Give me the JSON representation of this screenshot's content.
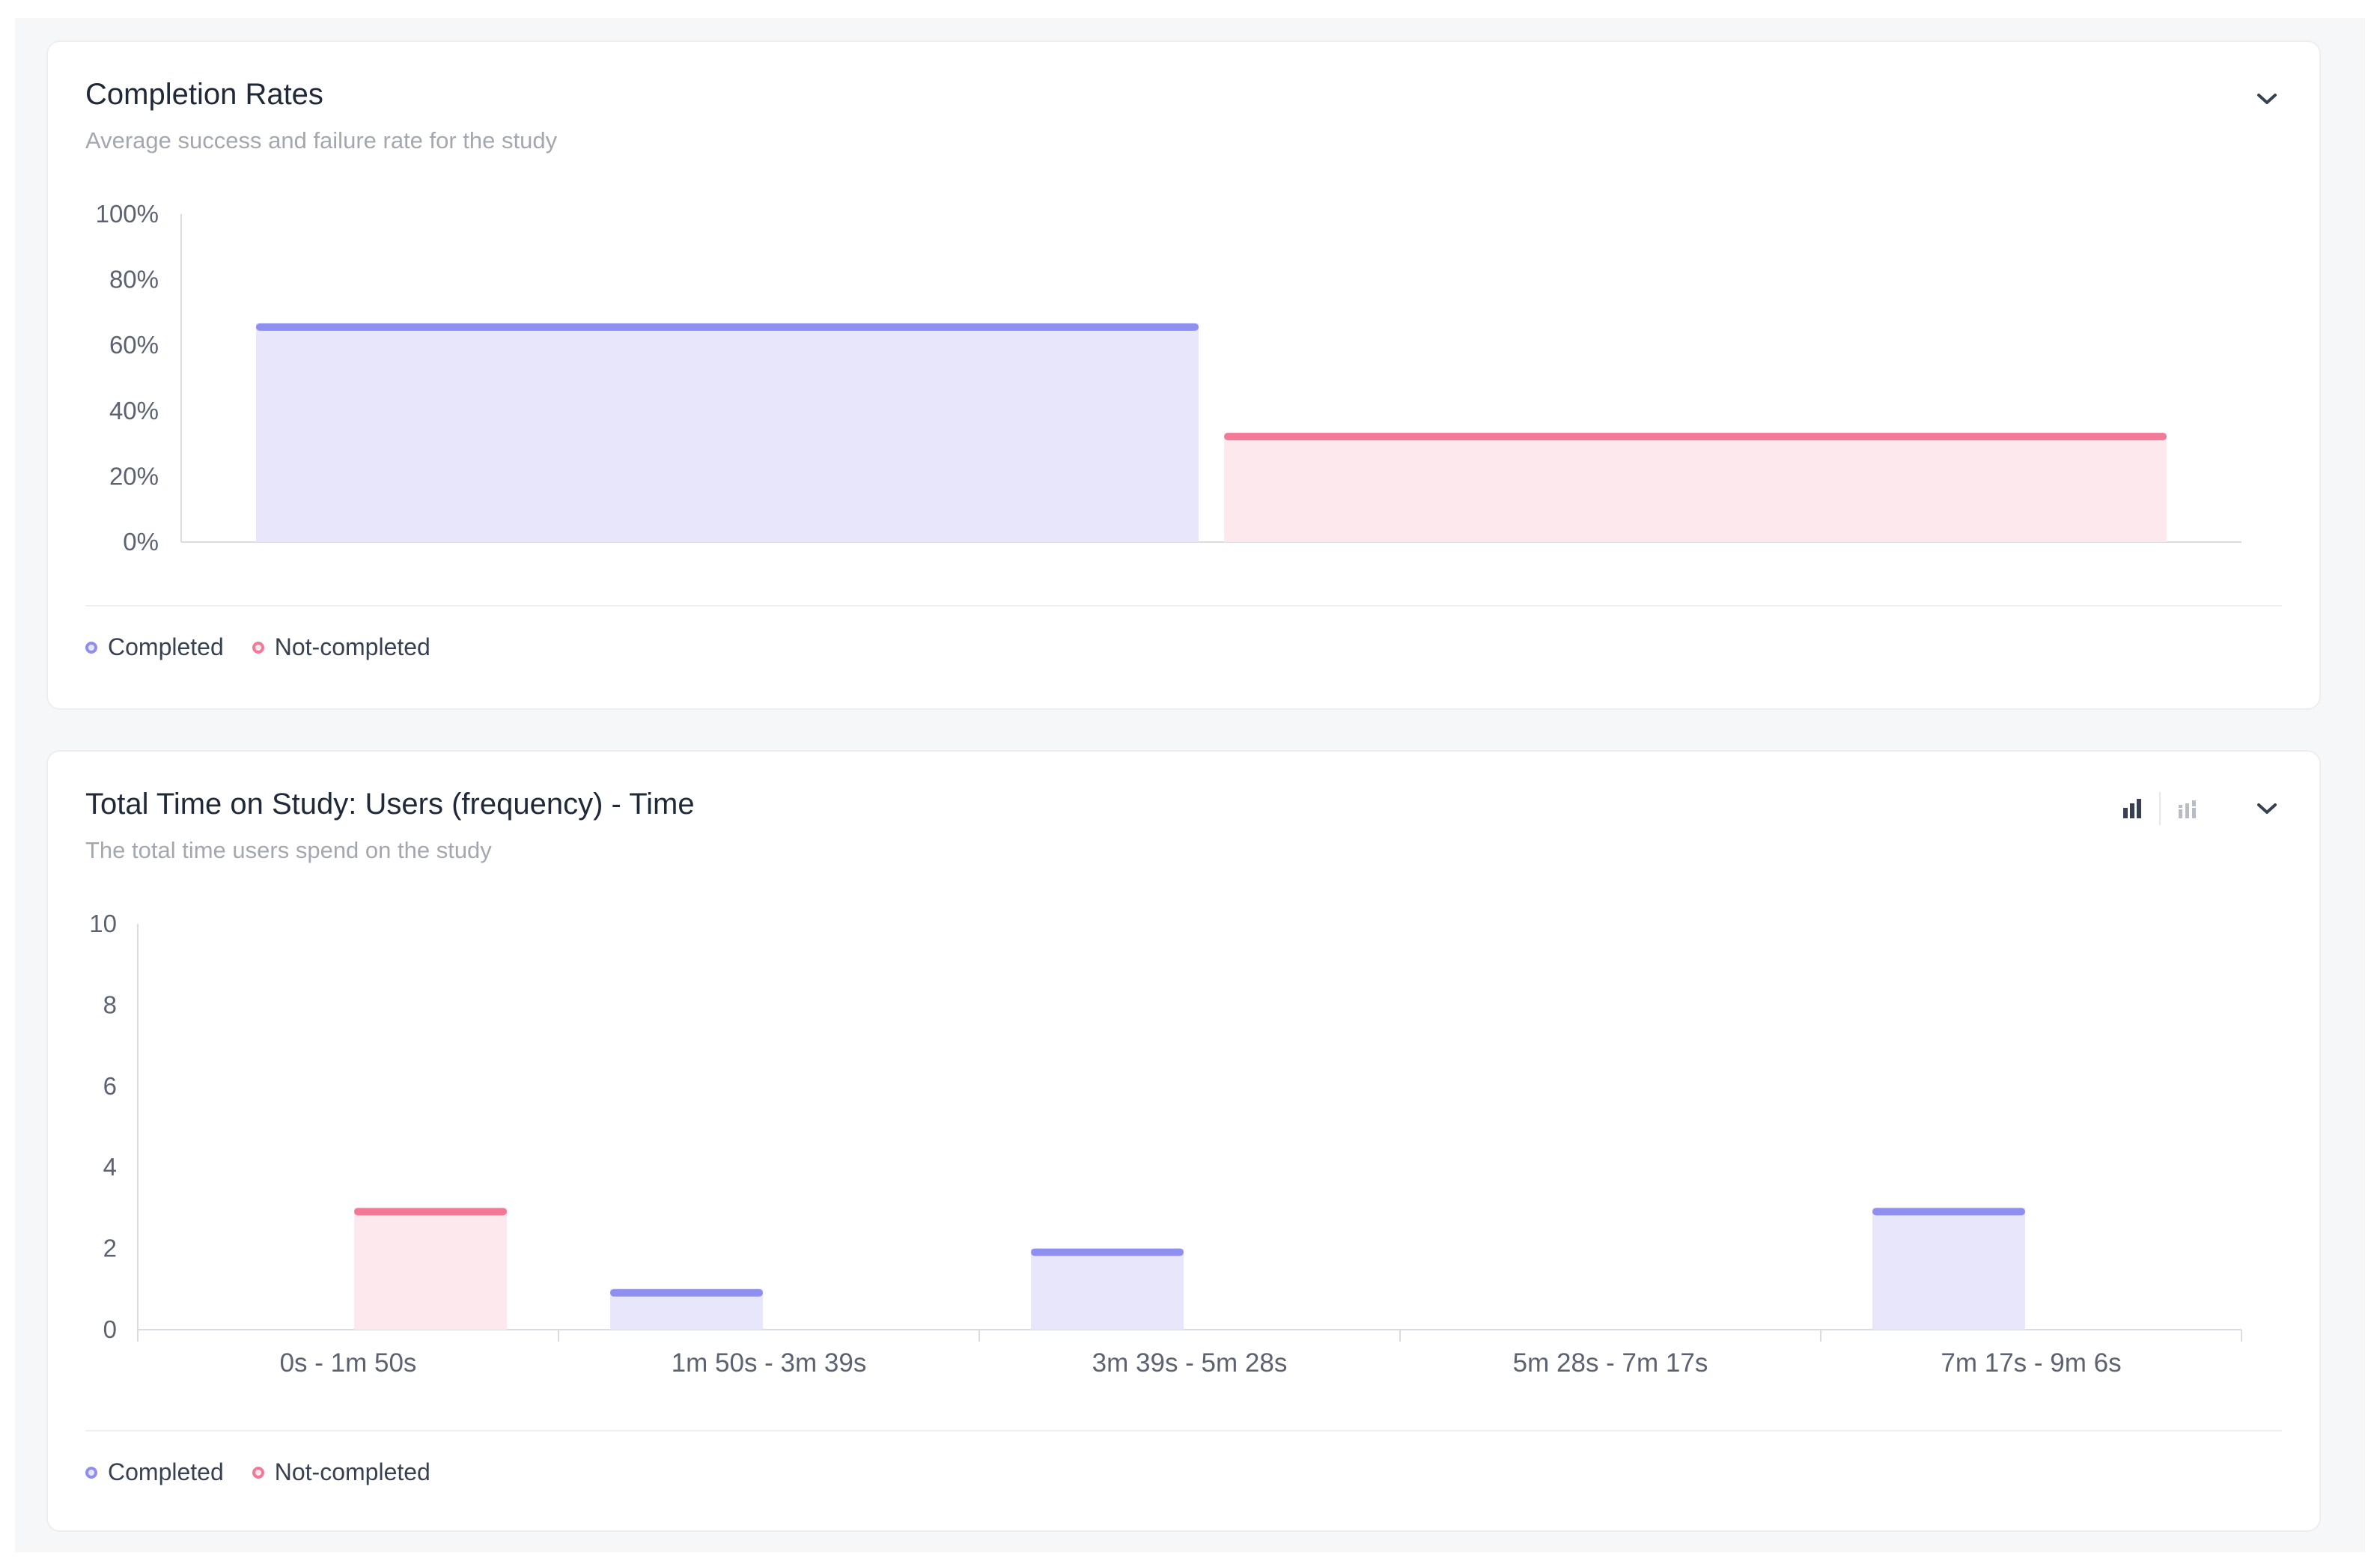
{
  "colors": {
    "completed_stroke": "#8f8ff0",
    "completed_fill": "#e7e6fb",
    "not_completed_stroke": "#f27a96",
    "not_completed_fill": "#fde8ed",
    "axis": "#d9dce1",
    "grid": "#eceef1"
  },
  "icons": {
    "collapse": "chevron-down-icon",
    "bar_view": "bar-chart-icon",
    "histogram_view": "histogram-icon"
  },
  "completion_card": {
    "title": "Completion Rates",
    "subtitle": "Average success and failure rate for the study",
    "legend": [
      {
        "label": "Completed",
        "color_key": "completed"
      },
      {
        "label": "Not-completed",
        "color_key": "not_completed"
      }
    ]
  },
  "time_card": {
    "title": "Total Time on Study: Users (frequency) - Time",
    "subtitle": "The total time users spend on the study",
    "legend": [
      {
        "label": "Completed",
        "color_key": "completed"
      },
      {
        "label": "Not-completed",
        "color_key": "not_completed"
      }
    ]
  },
  "chart_data": [
    {
      "type": "bar",
      "title": "Completion Rates",
      "categories": [
        "Completed",
        "Not-completed"
      ],
      "values": [
        66.7,
        33.3
      ],
      "ylim": [
        0,
        100
      ],
      "yticks": [
        "0%",
        "20%",
        "40%",
        "60%",
        "80%",
        "100%"
      ],
      "xlabel": "",
      "ylabel": "",
      "grid": false,
      "legend_position": "bottom-left"
    },
    {
      "type": "bar",
      "title": "Total Time on Study: Users (frequency) - Time",
      "categories": [
        "0s - 1m 50s",
        "1m 50s - 3m 39s",
        "3m 39s - 5m 28s",
        "5m 28s - 7m 17s",
        "7m 17s - 9m 6s"
      ],
      "series": [
        {
          "name": "Completed",
          "values": [
            0,
            1,
            2,
            0,
            3
          ]
        },
        {
          "name": "Not-completed",
          "values": [
            3,
            0,
            0,
            0,
            0
          ]
        }
      ],
      "ylim": [
        0,
        10
      ],
      "yticks": [
        "0",
        "2",
        "4",
        "6",
        "8",
        "10"
      ],
      "xlabel": "",
      "ylabel": "",
      "grid": false,
      "legend_position": "bottom-left"
    }
  ]
}
